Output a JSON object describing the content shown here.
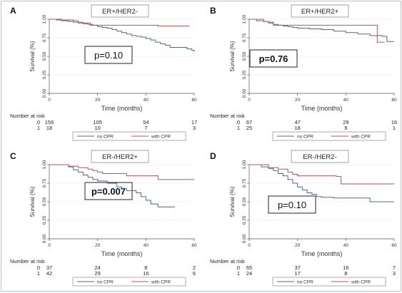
{
  "chart_data": [
    {
      "type": "line",
      "letter": "A",
      "title": "ER+/HER2-",
      "xlabel": "Time (months)",
      "ylabel": "Survival (%)",
      "xlim": [
        0,
        60
      ],
      "ylim": [
        0,
        1
      ],
      "xticks": [
        "0",
        "20",
        "40",
        "60"
      ],
      "yticks": [
        "0.00",
        "0.25",
        "0.50",
        "0.75",
        "1.00"
      ],
      "pvalue": "p=0.10",
      "pvalue_bold": false,
      "series": [
        {
          "name": "no CPR",
          "color": "#4a6a94",
          "x": [
            0,
            3,
            5,
            8,
            10,
            12,
            14,
            16,
            18,
            20,
            22,
            24,
            26,
            28,
            30,
            32,
            34,
            36,
            38,
            40,
            42,
            44,
            46,
            48,
            50,
            55,
            57,
            59,
            60
          ],
          "y": [
            1.0,
            0.99,
            0.98,
            0.97,
            0.96,
            0.95,
            0.94,
            0.93,
            0.92,
            0.9,
            0.89,
            0.88,
            0.86,
            0.84,
            0.82,
            0.8,
            0.78,
            0.77,
            0.76,
            0.74,
            0.72,
            0.69,
            0.67,
            0.65,
            0.62,
            0.62,
            0.6,
            0.58,
            0.56
          ]
        },
        {
          "name": "with CPR",
          "color": "#c0504d",
          "x": [
            0,
            5,
            10,
            12,
            14,
            17,
            20,
            30,
            40,
            45,
            55,
            58
          ],
          "y": [
            1.0,
            0.99,
            0.98,
            0.96,
            0.95,
            0.92,
            0.92,
            0.92,
            0.92,
            0.91,
            0.91,
            0.91
          ]
        }
      ],
      "number_at_risk": {
        "title": "Number at risk",
        "rows": [
          {
            "group": "0",
            "values": [
              "156",
              "105",
              "54",
              "17"
            ]
          },
          {
            "group": "1",
            "values": [
              "18",
              "10",
              "7",
              "3"
            ]
          }
        ]
      },
      "legend": [
        "no CPR",
        "with CPR"
      ]
    },
    {
      "type": "line",
      "letter": "B",
      "title": "ER+/HER2+",
      "xlabel": "Time (months)",
      "ylabel": "Survival (%)",
      "xlim": [
        0,
        60
      ],
      "ylim": [
        0,
        1
      ],
      "xticks": [
        "0",
        "20",
        "40",
        "60"
      ],
      "yticks": [
        "0.00",
        "0.25",
        "0.50",
        "0.75",
        "1.00"
      ],
      "pvalue": "p=0.76",
      "pvalue_bold": true,
      "series": [
        {
          "name": "no CPR",
          "color": "#4a6a94",
          "x": [
            0,
            3,
            6,
            8,
            10,
            12,
            14,
            16,
            18,
            20,
            25,
            30,
            35,
            40,
            45,
            50,
            55,
            57,
            60
          ],
          "y": [
            1.0,
            0.98,
            0.97,
            0.95,
            0.93,
            0.92,
            0.91,
            0.9,
            0.89,
            0.88,
            0.87,
            0.86,
            0.84,
            0.82,
            0.8,
            0.78,
            0.77,
            0.7,
            0.7
          ]
        },
        {
          "name": "with CPR",
          "color": "#c0504d",
          "x": [
            0,
            6,
            8,
            10,
            14,
            20,
            30,
            40,
            52,
            53,
            56
          ],
          "y": [
            1.0,
            0.97,
            0.96,
            0.92,
            0.92,
            0.92,
            0.92,
            0.92,
            0.92,
            0.69,
            0.69
          ]
        }
      ],
      "number_at_risk": {
        "title": "Number at risk",
        "rows": [
          {
            "group": "0",
            "values": [
              "67",
              "47",
              "29",
              "16"
            ]
          },
          {
            "group": "1",
            "values": [
              "25",
              "18",
              "9",
              "1"
            ]
          }
        ]
      },
      "legend": [
        "no CPR",
        "with CPR"
      ]
    },
    {
      "type": "line",
      "letter": "C",
      "title": "ER-/HER2+",
      "xlabel": "Time (months)",
      "ylabel": "Survival (%)",
      "xlim": [
        0,
        60
      ],
      "ylim": [
        0,
        1
      ],
      "xticks": [
        "0",
        "20",
        "40",
        "60"
      ],
      "yticks": [
        "0.00",
        "0.25",
        "0.50",
        "0.75",
        "1.00"
      ],
      "pvalue": "p=0.007",
      "pvalue_bold": true,
      "series": [
        {
          "name": "no CPR",
          "color": "#4a6a94",
          "x": [
            0,
            8,
            10,
            12,
            14,
            16,
            18,
            20,
            24,
            28,
            30,
            32,
            36,
            38,
            40,
            42,
            45,
            52
          ],
          "y": [
            1.0,
            0.97,
            0.93,
            0.9,
            0.86,
            0.83,
            0.8,
            0.78,
            0.75,
            0.7,
            0.68,
            0.65,
            0.62,
            0.57,
            0.52,
            0.47,
            0.43,
            0.43
          ]
        },
        {
          "name": "with CPR",
          "color": "#c0504d",
          "x": [
            0,
            8,
            12,
            16,
            18,
            20,
            22,
            28,
            32,
            40,
            45,
            60
          ],
          "y": [
            1.0,
            0.98,
            0.96,
            0.94,
            0.92,
            0.9,
            0.88,
            0.88,
            0.85,
            0.85,
            0.8,
            0.8
          ]
        }
      ],
      "number_at_risk": {
        "title": "Number at risk",
        "rows": [
          {
            "group": "0",
            "values": [
              "37",
              "24",
              "8",
              "2"
            ]
          },
          {
            "group": "1",
            "values": [
              "42",
              "29",
              "16",
              "6"
            ]
          }
        ]
      },
      "legend": [
        "no CPR",
        "with CPR"
      ]
    },
    {
      "type": "line",
      "letter": "D",
      "title": "ER-/HER2-",
      "xlabel": "Time (months)",
      "ylabel": "Survival (%)",
      "xlim": [
        0,
        60
      ],
      "ylim": [
        0,
        1
      ],
      "xticks": [
        "0",
        "20",
        "40",
        "60"
      ],
      "yticks": [
        "0.00",
        "0.25",
        "0.50",
        "0.75",
        "1.00"
      ],
      "pvalue": "p=0.10",
      "pvalue_bold": false,
      "series": [
        {
          "name": "no CPR",
          "color": "#4a6a94",
          "x": [
            0,
            5,
            8,
            10,
            12,
            14,
            16,
            18,
            20,
            22,
            24,
            26,
            28,
            30,
            35,
            40,
            50,
            55,
            60
          ],
          "y": [
            1.0,
            0.97,
            0.95,
            0.92,
            0.88,
            0.85,
            0.8,
            0.75,
            0.7,
            0.66,
            0.62,
            0.6,
            0.57,
            0.56,
            0.55,
            0.55,
            0.5,
            0.5,
            0.5
          ]
        },
        {
          "name": "with CPR",
          "color": "#c0504d",
          "x": [
            0,
            8,
            12,
            16,
            18,
            20,
            24,
            30,
            36,
            38,
            40,
            60
          ],
          "y": [
            1.0,
            0.96,
            0.94,
            0.9,
            0.87,
            0.85,
            0.85,
            0.85,
            0.84,
            0.74,
            0.74,
            0.74
          ]
        }
      ],
      "number_at_risk": {
        "title": "Number at risk",
        "rows": [
          {
            "group": "0",
            "values": [
              "65",
              "37",
              "16",
              "7"
            ]
          },
          {
            "group": "1",
            "values": [
              "24",
              "17",
              "8",
              "3"
            ]
          }
        ]
      },
      "legend": [
        "no CPR",
        "with CPR"
      ]
    }
  ]
}
